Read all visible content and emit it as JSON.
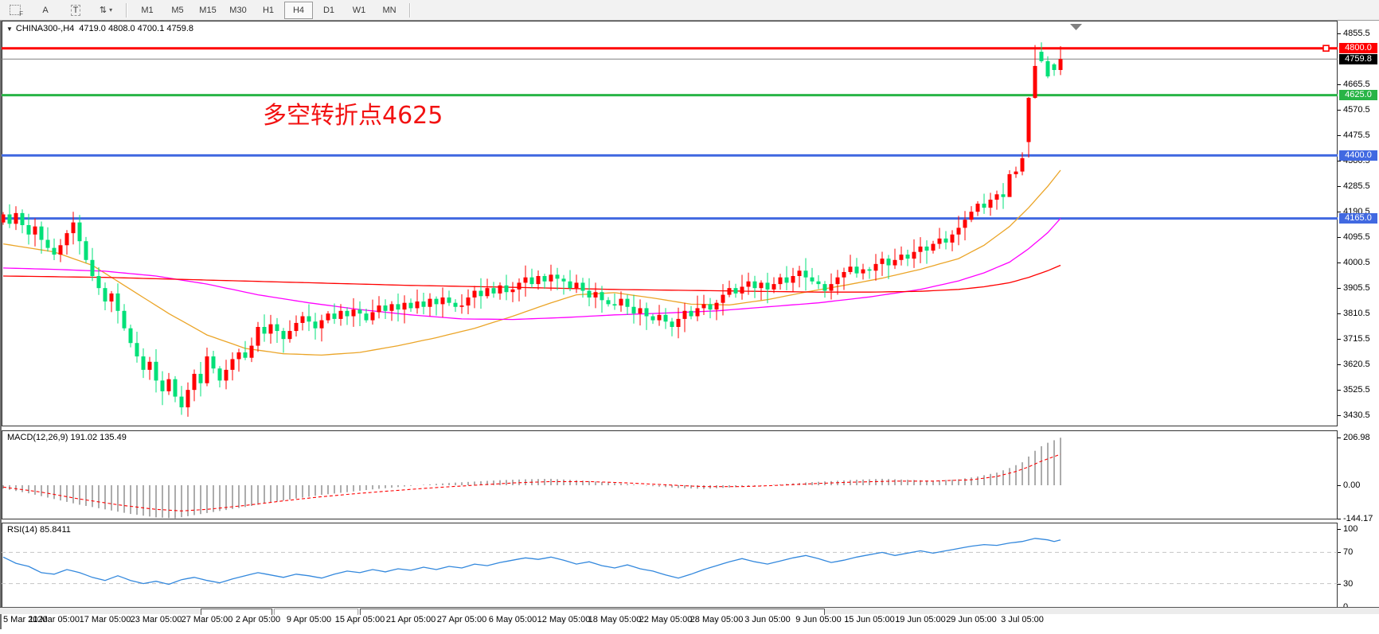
{
  "toolbar": {
    "tools": [
      {
        "name": "fibonacci-tool",
        "label": "F"
      },
      {
        "name": "text-tool",
        "label": "A"
      },
      {
        "name": "label-tool",
        "label": "T"
      },
      {
        "name": "arrows-tool",
        "label": "⇅"
      }
    ],
    "timeframes": [
      "M1",
      "M5",
      "M15",
      "M30",
      "H1",
      "H4",
      "D1",
      "W1",
      "MN"
    ],
    "active_timeframe": "H4"
  },
  "chart": {
    "symbol_title": "CHINA300-,H4",
    "ohlc_title": "4719.0 4808.0 4700.1 4759.8",
    "annotation": {
      "text": "多空转折点4625",
      "color": "#f21212"
    },
    "dropdown_triangle": "▼"
  },
  "colors": {
    "bull": "#ff0000",
    "bear": "#00e078",
    "level_red": "#ff0000",
    "level_green": "#28b446",
    "level_blue": "#4169e1",
    "current_price_line": "#808080",
    "badge_black": "#000000",
    "ma_fast": "#eba528",
    "ma_mid": "#ff00ff",
    "ma_slow": "#ff0000",
    "macd_bar": "#757575",
    "macd_signal": "#ff0000",
    "rsi_line": "#3388dd",
    "dashed_level": "#c4c4c4"
  },
  "chart_data": {
    "type": "candlestick",
    "symbol": "CHINA300-",
    "timeframe": "H4",
    "title": "CHINA300-,H4 4719.0 4808.0 4700.1 4759.8",
    "last_candle_ohlc": [
      4719.0,
      4808.0,
      4700.1,
      4759.8
    ],
    "current_price": 4759.8,
    "y_ticks": [
      4855.5,
      4665.5,
      4570.5,
      4475.5,
      4380.5,
      4285.5,
      4190.5,
      4095.5,
      4000.5,
      3905.5,
      3810.5,
      3715.5,
      3620.5,
      3525.5,
      3430.5
    ],
    "x_labels": [
      "5 Mar 2020",
      "11 Mar 05:00",
      "17 Mar 05:00",
      "23 Mar 05:00",
      "27 Mar 05:00",
      "2 Apr 05:00",
      "9 Apr 05:00",
      "15 Apr 05:00",
      "21 Apr 05:00",
      "27 Apr 05:00",
      "6 May 05:00",
      "12 May 05:00",
      "18 May 05:00",
      "22 May 05:00",
      "28 May 05:00",
      "3 Jun 05:00",
      "9 Jun 05:00",
      "15 Jun 05:00",
      "19 Jun 05:00",
      "29 Jun 05:00",
      "3 Jul 05:00"
    ],
    "horizontal_levels": [
      {
        "price": 4800.0,
        "label": "4800.0",
        "color": "#ff0000",
        "width": 3
      },
      {
        "price": 4625.0,
        "label": "4625.0",
        "color": "#28b446",
        "width": 3
      },
      {
        "price": 4400.0,
        "label": "4400.0",
        "color": "#4169e1",
        "width": 3
      },
      {
        "price": 4165.0,
        "label": "4165.0",
        "color": "#4169e1",
        "width": 3
      }
    ],
    "badges": [
      {
        "label": "4800.0",
        "price": 4800.0,
        "bg": "#ff0000"
      },
      {
        "label": "4759.8",
        "price": 4759.8,
        "bg": "#000000"
      },
      {
        "label": "4625.0",
        "price": 4625.0,
        "bg": "#28b446"
      },
      {
        "label": "4400.0",
        "price": 4400.0,
        "bg": "#4169e1"
      },
      {
        "label": "4165.0",
        "price": 4165.0,
        "bg": "#4169e1"
      }
    ],
    "closes": [
      4180,
      4145,
      4185,
      4140,
      4105,
      4135,
      4085,
      4055,
      4030,
      4065,
      4110,
      4150,
      4080,
      4010,
      3950,
      3905,
      3855,
      3885,
      3820,
      3755,
      3700,
      3650,
      3600,
      3630,
      3560,
      3520,
      3565,
      3500,
      3460,
      3525,
      3585,
      3550,
      3650,
      3605,
      3560,
      3600,
      3640,
      3665,
      3645,
      3690,
      3760,
      3735,
      3770,
      3745,
      3715,
      3745,
      3775,
      3800,
      3780,
      3755,
      3785,
      3810,
      3790,
      3820,
      3800,
      3825,
      3810,
      3785,
      3815,
      3840,
      3820,
      3845,
      3825,
      3850,
      3830,
      3855,
      3835,
      3865,
      3845,
      3870,
      3850,
      3835,
      3840,
      3870,
      3895,
      3875,
      3905,
      3885,
      3915,
      3890,
      3900,
      3925,
      3945,
      3920,
      3950,
      3930,
      3955,
      3940,
      3930,
      3905,
      3925,
      3895,
      3870,
      3890,
      3860,
      3845,
      3840,
      3865,
      3835,
      3810,
      3830,
      3800,
      3785,
      3805,
      3780,
      3760,
      3790,
      3820,
      3800,
      3830,
      3845,
      3825,
      3850,
      3880,
      3905,
      3885,
      3910,
      3930,
      3905,
      3925,
      3900,
      3920,
      3945,
      3925,
      3950,
      3970,
      3945,
      3930,
      3920,
      3895,
      3920,
      3945,
      3965,
      3985,
      3960,
      3975,
      3970,
      3995,
      4015,
      3990,
      4010,
      4030,
      4015,
      4040,
      4060,
      4045,
      4070,
      4090,
      4075,
      4105,
      4130,
      4160,
      4190,
      4220,
      4205,
      4235,
      4255,
      4245,
      4330,
      4340,
      4390,
      4615,
      4734,
      4752,
      4695,
      4719,
      4759.8
    ],
    "first_open": 4150,
    "opens_override": {
      "161": 4450,
      "163": 4787,
      "165": 4740
    },
    "hl_override": {
      "158": [
        4345,
        4252
      ],
      "160": [
        4412,
        4326
      ],
      "161": [
        4618,
        4392
      ],
      "162": [
        4812,
        4612
      ],
      "163": [
        4822,
        4746
      ],
      "164": [
        4770,
        4688
      ],
      "165": [
        4745,
        4697
      ],
      "166": [
        4808,
        4700.1
      ]
    },
    "moving_averages": [
      {
        "name": "ma-fast-orange",
        "color": "#eba528",
        "keypoints": [
          [
            0,
            4070
          ],
          [
            8,
            4040
          ],
          [
            14,
            3990
          ],
          [
            20,
            3900
          ],
          [
            26,
            3810
          ],
          [
            32,
            3730
          ],
          [
            38,
            3680
          ],
          [
            44,
            3660
          ],
          [
            50,
            3655
          ],
          [
            56,
            3665
          ],
          [
            62,
            3690
          ],
          [
            68,
            3720
          ],
          [
            74,
            3755
          ],
          [
            80,
            3800
          ],
          [
            86,
            3850
          ],
          [
            90,
            3880
          ],
          [
            96,
            3888
          ],
          [
            102,
            3868
          ],
          [
            108,
            3845
          ],
          [
            114,
            3842
          ],
          [
            120,
            3862
          ],
          [
            126,
            3890
          ],
          [
            132,
            3915
          ],
          [
            138,
            3942
          ],
          [
            144,
            3975
          ],
          [
            150,
            4015
          ],
          [
            154,
            4065
          ],
          [
            158,
            4135
          ],
          [
            161,
            4205
          ],
          [
            164,
            4285
          ],
          [
            166,
            4345
          ]
        ]
      },
      {
        "name": "ma-mid-magenta",
        "color": "#ff00ff",
        "keypoints": [
          [
            0,
            3980
          ],
          [
            8,
            3975
          ],
          [
            16,
            3968
          ],
          [
            24,
            3950
          ],
          [
            32,
            3920
          ],
          [
            40,
            3880
          ],
          [
            48,
            3850
          ],
          [
            56,
            3825
          ],
          [
            64,
            3805
          ],
          [
            72,
            3790
          ],
          [
            80,
            3788
          ],
          [
            88,
            3795
          ],
          [
            96,
            3805
          ],
          [
            104,
            3812
          ],
          [
            112,
            3820
          ],
          [
            120,
            3835
          ],
          [
            128,
            3850
          ],
          [
            136,
            3872
          ],
          [
            144,
            3900
          ],
          [
            150,
            3932
          ],
          [
            154,
            3962
          ],
          [
            158,
            4002
          ],
          [
            161,
            4052
          ],
          [
            164,
            4112
          ],
          [
            166,
            4165
          ]
        ]
      },
      {
        "name": "ma-slow-red",
        "color": "#ff0000",
        "keypoints": [
          [
            0,
            3950
          ],
          [
            16,
            3945
          ],
          [
            32,
            3935
          ],
          [
            48,
            3925
          ],
          [
            64,
            3915
          ],
          [
            80,
            3908
          ],
          [
            96,
            3900
          ],
          [
            112,
            3895
          ],
          [
            128,
            3890
          ],
          [
            136,
            3890
          ],
          [
            144,
            3893
          ],
          [
            150,
            3900
          ],
          [
            154,
            3910
          ],
          [
            158,
            3925
          ],
          [
            161,
            3945
          ],
          [
            164,
            3970
          ],
          [
            166,
            3990
          ]
        ]
      }
    ],
    "macd": {
      "label": "MACD(12,26,9)",
      "main_value": 191.02,
      "signal_value": 135.49,
      "label_full": "MACD(12,26,9) 191.02 135.49",
      "axis_labels": [
        "206.98",
        "0.00",
        "-144.17"
      ],
      "axis_values": [
        206.98,
        0.0,
        -144.17
      ],
      "hist_keypoints": [
        [
          0,
          -15
        ],
        [
          4,
          -35
        ],
        [
          8,
          -60
        ],
        [
          12,
          -85
        ],
        [
          16,
          -105
        ],
        [
          20,
          -125
        ],
        [
          24,
          -140
        ],
        [
          27,
          -144
        ],
        [
          30,
          -130
        ],
        [
          34,
          -112
        ],
        [
          38,
          -95
        ],
        [
          42,
          -75
        ],
        [
          46,
          -58
        ],
        [
          50,
          -42
        ],
        [
          54,
          -30
        ],
        [
          58,
          -18
        ],
        [
          62,
          -8
        ],
        [
          66,
          2
        ],
        [
          70,
          10
        ],
        [
          74,
          16
        ],
        [
          78,
          22
        ],
        [
          82,
          26
        ],
        [
          86,
          28
        ],
        [
          90,
          22
        ],
        [
          94,
          14
        ],
        [
          98,
          5
        ],
        [
          102,
          -4
        ],
        [
          106,
          -12
        ],
        [
          110,
          -16
        ],
        [
          114,
          -10
        ],
        [
          118,
          -4
        ],
        [
          122,
          4
        ],
        [
          126,
          12
        ],
        [
          130,
          18
        ],
        [
          134,
          24
        ],
        [
          138,
          28
        ],
        [
          142,
          24
        ],
        [
          146,
          20
        ],
        [
          150,
          26
        ],
        [
          153,
          38
        ],
        [
          156,
          55
        ],
        [
          158,
          75
        ],
        [
          160,
          100
        ],
        [
          161,
          125
        ],
        [
          162,
          150
        ],
        [
          163,
          170
        ],
        [
          164,
          185
        ],
        [
          165,
          196
        ],
        [
          166,
          207
        ]
      ],
      "signal_keypoints": [
        [
          0,
          -8
        ],
        [
          6,
          -30
        ],
        [
          12,
          -60
        ],
        [
          18,
          -85
        ],
        [
          24,
          -105
        ],
        [
          28,
          -112
        ],
        [
          32,
          -105
        ],
        [
          38,
          -88
        ],
        [
          44,
          -68
        ],
        [
          50,
          -50
        ],
        [
          56,
          -35
        ],
        [
          62,
          -22
        ],
        [
          68,
          -10
        ],
        [
          74,
          0
        ],
        [
          80,
          10
        ],
        [
          86,
          16
        ],
        [
          92,
          16
        ],
        [
          98,
          10
        ],
        [
          104,
          2
        ],
        [
          110,
          -6
        ],
        [
          116,
          -6
        ],
        [
          122,
          0
        ],
        [
          128,
          8
        ],
        [
          134,
          14
        ],
        [
          140,
          18
        ],
        [
          146,
          18
        ],
        [
          152,
          24
        ],
        [
          156,
          38
        ],
        [
          159,
          60
        ],
        [
          161,
          80
        ],
        [
          163,
          105
        ],
        [
          165,
          125
        ],
        [
          166,
          135
        ]
      ]
    },
    "rsi": {
      "label": "RSI(14)",
      "value": 85.8411,
      "label_full": "RSI(14) 85.8411",
      "axis_labels": [
        "100",
        "70",
        "30",
        "0"
      ],
      "axis_values": [
        100,
        70,
        30,
        0
      ],
      "level_lines": [
        70,
        30
      ],
      "keypoints": [
        [
          0,
          64
        ],
        [
          2,
          56
        ],
        [
          4,
          52
        ],
        [
          6,
          44
        ],
        [
          8,
          42
        ],
        [
          10,
          48
        ],
        [
          12,
          44
        ],
        [
          14,
          38
        ],
        [
          16,
          34
        ],
        [
          18,
          40
        ],
        [
          20,
          34
        ],
        [
          22,
          30
        ],
        [
          24,
          33
        ],
        [
          26,
          29
        ],
        [
          28,
          35
        ],
        [
          30,
          38
        ],
        [
          32,
          34
        ],
        [
          34,
          31
        ],
        [
          36,
          36
        ],
        [
          38,
          40
        ],
        [
          40,
          44
        ],
        [
          42,
          41
        ],
        [
          44,
          38
        ],
        [
          46,
          42
        ],
        [
          48,
          40
        ],
        [
          50,
          37
        ],
        [
          52,
          42
        ],
        [
          54,
          46
        ],
        [
          56,
          44
        ],
        [
          58,
          48
        ],
        [
          60,
          45
        ],
        [
          62,
          49
        ],
        [
          64,
          47
        ],
        [
          66,
          51
        ],
        [
          68,
          48
        ],
        [
          70,
          52
        ],
        [
          72,
          50
        ],
        [
          74,
          55
        ],
        [
          76,
          53
        ],
        [
          78,
          57
        ],
        [
          80,
          60
        ],
        [
          82,
          63
        ],
        [
          84,
          61
        ],
        [
          86,
          64
        ],
        [
          88,
          60
        ],
        [
          90,
          55
        ],
        [
          92,
          58
        ],
        [
          94,
          53
        ],
        [
          96,
          50
        ],
        [
          98,
          54
        ],
        [
          100,
          49
        ],
        [
          102,
          46
        ],
        [
          104,
          41
        ],
        [
          106,
          37
        ],
        [
          108,
          42
        ],
        [
          110,
          48
        ],
        [
          112,
          53
        ],
        [
          114,
          58
        ],
        [
          116,
          62
        ],
        [
          118,
          58
        ],
        [
          120,
          55
        ],
        [
          122,
          59
        ],
        [
          124,
          63
        ],
        [
          126,
          66
        ],
        [
          128,
          62
        ],
        [
          130,
          57
        ],
        [
          132,
          60
        ],
        [
          134,
          64
        ],
        [
          136,
          67
        ],
        [
          138,
          70
        ],
        [
          140,
          66
        ],
        [
          142,
          69
        ],
        [
          144,
          72
        ],
        [
          146,
          69
        ],
        [
          148,
          72
        ],
        [
          150,
          75
        ],
        [
          152,
          78
        ],
        [
          154,
          80
        ],
        [
          156,
          79
        ],
        [
          158,
          82
        ],
        [
          160,
          84
        ],
        [
          162,
          88
        ],
        [
          164,
          86
        ],
        [
          165,
          84
        ],
        [
          166,
          86
        ]
      ]
    }
  }
}
